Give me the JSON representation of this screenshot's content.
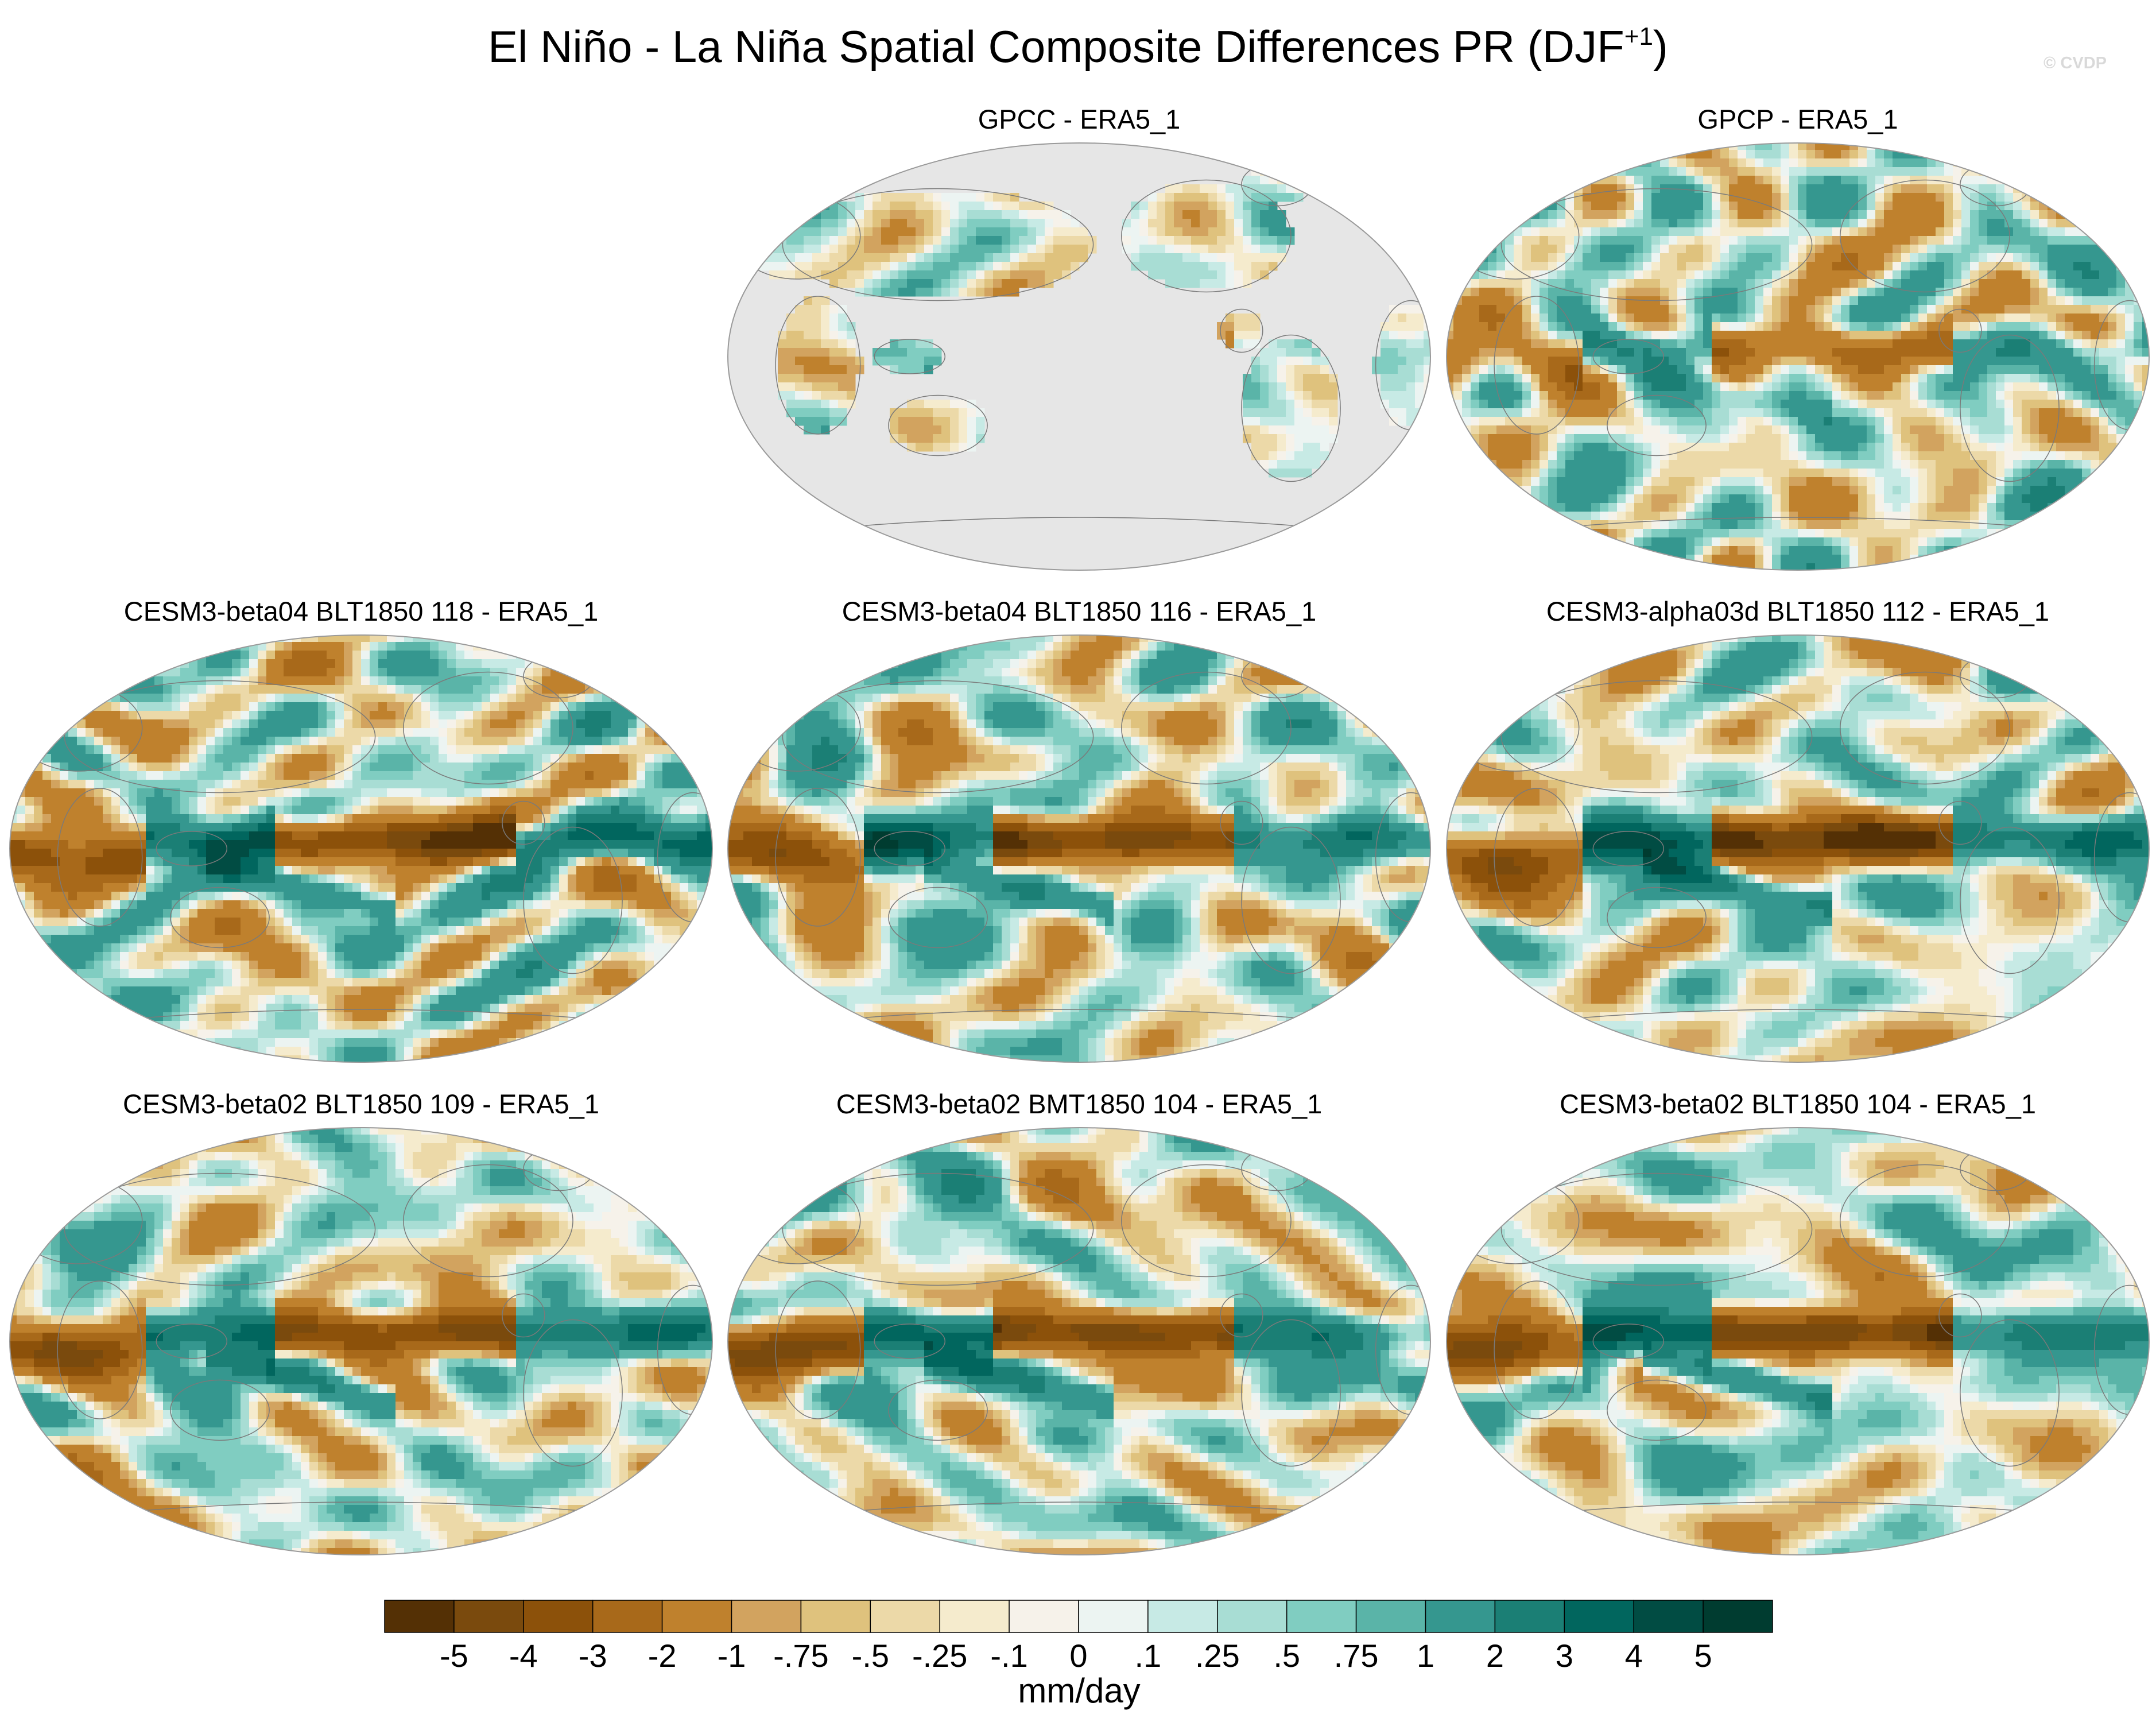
{
  "title_main": "El Niño - La Niña Spatial Composite Differences PR (DJF",
  "title_sup": "+1",
  "title_close": ")",
  "copyright": "© CVDP",
  "chart_data": {
    "type": "heatmap",
    "projection": "Robinson (ellipse), Pacific-centered",
    "panels": [
      {
        "title": "GPCC - ERA5_1",
        "land_only": true,
        "seed": 11,
        "enso": 0.35
      },
      {
        "title": "GPCP - ERA5_1",
        "land_only": false,
        "seed": 23,
        "enso": 0.55
      },
      {
        "title": "CESM3-beta04 BLT1850 118 - ERA5_1",
        "land_only": false,
        "seed": 37,
        "enso": 1.0
      },
      {
        "title": "CESM3-beta04 BLT1850 116 - ERA5_1",
        "land_only": false,
        "seed": 41,
        "enso": 1.0
      },
      {
        "title": "CESM3-alpha03d BLT1850 112 - ERA5_1",
        "land_only": false,
        "seed": 53,
        "enso": 1.1
      },
      {
        "title": "CESM3-beta02 BLT1850 109 - ERA5_1",
        "land_only": false,
        "seed": 67,
        "enso": 1.05
      },
      {
        "title": "CESM3-beta02 BMT1850 104 - ERA5_1",
        "land_only": false,
        "seed": 79,
        "enso": 1.1
      },
      {
        "title": "CESM3-beta02 BLT1850 104 - ERA5_1",
        "land_only": false,
        "seed": 83,
        "enso": 1.15
      }
    ],
    "colorbar": {
      "levels": [
        -5,
        -4,
        -3,
        -2,
        -1,
        -0.75,
        -0.5,
        -0.25,
        -0.1,
        0,
        0.1,
        0.25,
        0.5,
        0.75,
        1,
        2,
        3,
        4,
        5
      ],
      "tick_labels": [
        "-5",
        "-4",
        "-3",
        "-2",
        "-1",
        "-.75",
        "-.5",
        "-.25",
        "-.1",
        "0",
        ".1",
        ".25",
        ".5",
        ".75",
        "1",
        "2",
        "3",
        "4",
        "5"
      ],
      "colors": [
        "#543005",
        "#7a4a0d",
        "#8c510a",
        "#a8691a",
        "#bf812d",
        "#d2a35f",
        "#dfc27d",
        "#ecd9a8",
        "#f5ebcd",
        "#f6f2ea",
        "#ecf4f2",
        "#c7eae5",
        "#a8ddd4",
        "#80cdc1",
        "#5ab4a8",
        "#35978f",
        "#1b7f75",
        "#01665e",
        "#014c43",
        "#003c30"
      ],
      "units": "mm/day"
    }
  }
}
